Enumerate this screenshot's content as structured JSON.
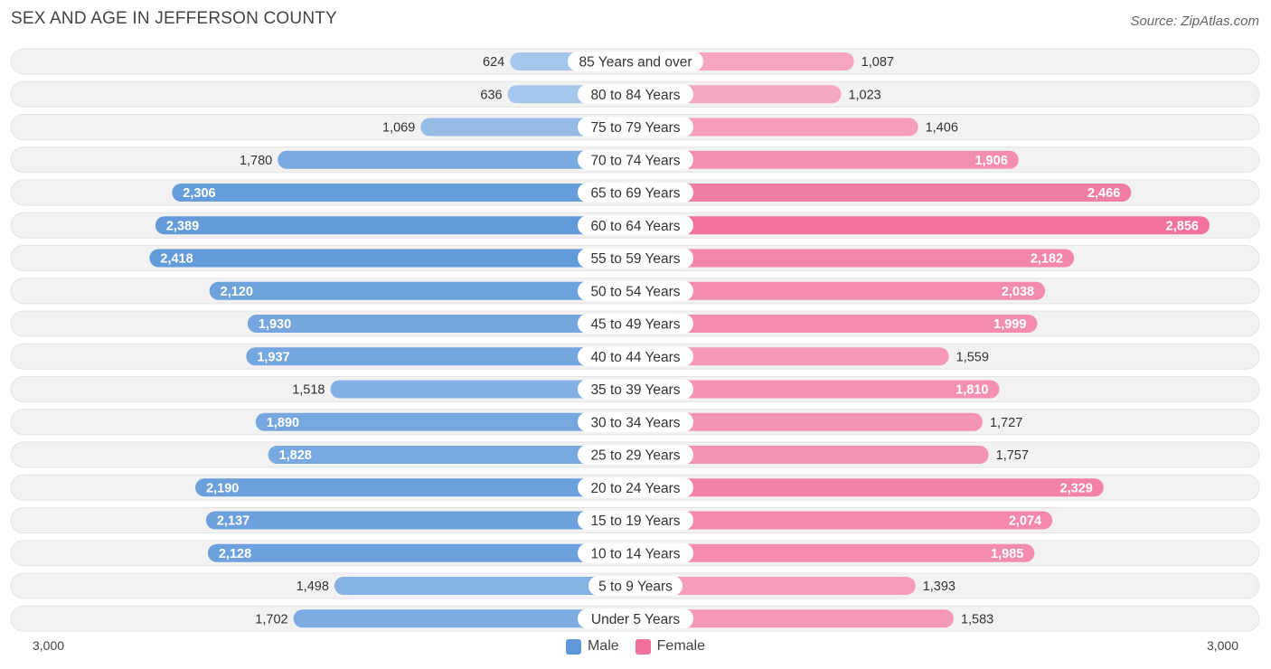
{
  "header": {
    "title": "SEX AND AGE IN JEFFERSON COUNTY",
    "source": "Source: ZipAtlas.com"
  },
  "colors": {
    "male_strong": "#5f98d9",
    "male_light": "#a7c8ec",
    "female_strong": "#f2719a",
    "female_light": "#f6a9c2",
    "row_background": "#f2f2f2"
  },
  "chart_data": {
    "type": "bar",
    "orientation": "horizontal-diverging",
    "title": "SEX AND AGE IN JEFFERSON COUNTY",
    "categories": [
      "85 Years and over",
      "80 to 84 Years",
      "75 to 79 Years",
      "70 to 74 Years",
      "65 to 69 Years",
      "60 to 64 Years",
      "55 to 59 Years",
      "50 to 54 Years",
      "45 to 49 Years",
      "40 to 44 Years",
      "35 to 39 Years",
      "30 to 34 Years",
      "25 to 29 Years",
      "20 to 24 Years",
      "15 to 19 Years",
      "10 to 14 Years",
      "5 to 9 Years",
      "Under 5 Years"
    ],
    "series": [
      {
        "name": "Male",
        "values": [
          624,
          636,
          1069,
          1780,
          2306,
          2389,
          2418,
          2120,
          1930,
          1937,
          1518,
          1890,
          1828,
          2190,
          2137,
          2128,
          1498,
          1702
        ]
      },
      {
        "name": "Female",
        "values": [
          1087,
          1023,
          1406,
          1906,
          2466,
          2856,
          2182,
          2038,
          1999,
          1559,
          1810,
          1727,
          1757,
          2329,
          2074,
          1985,
          1393,
          1583
        ]
      }
    ],
    "value_labels": {
      "Male": [
        "624",
        "636",
        "1,069",
        "1,780",
        "2,306",
        "2,389",
        "2,418",
        "2,120",
        "1,930",
        "1,937",
        "1,518",
        "1,890",
        "1,828",
        "2,190",
        "2,137",
        "2,128",
        "1,498",
        "1,702"
      ],
      "Female": [
        "1,087",
        "1,023",
        "1,406",
        "1,906",
        "2,466",
        "2,856",
        "2,182",
        "2,038",
        "1,999",
        "1,559",
        "1,810",
        "1,727",
        "1,757",
        "2,329",
        "2,074",
        "1,985",
        "1,393",
        "1,583"
      ]
    },
    "xlim": [
      0,
      3000
    ],
    "axis_labels": {
      "left": "3,000",
      "right": "3,000"
    },
    "legend_position": "bottom-center",
    "grid": false
  },
  "legend": {
    "male_label": "Male",
    "female_label": "Female"
  }
}
